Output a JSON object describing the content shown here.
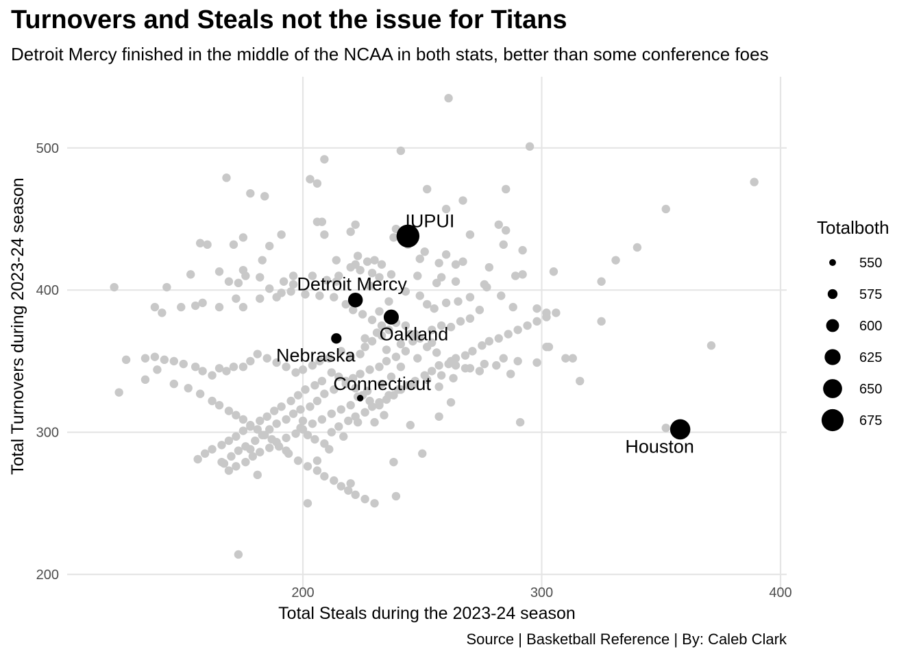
{
  "title": "Turnovers and Steals not the issue for Titans",
  "subtitle": "Detroit Mercy finished in the middle of the NCAA in both stats, better than some conference foes",
  "caption": "Source | Basketball Reference | By: Caleb Clark",
  "chart_data": {
    "type": "scatter",
    "xlabel": "Total Steals during the 2023-24 season",
    "ylabel": "Total Turnovers during 2023-24 season",
    "xlim": [
      100,
      402
    ],
    "ylim": [
      196,
      540
    ],
    "xticks": [
      200,
      300,
      400
    ],
    "yticks": [
      200,
      300,
      400,
      500
    ],
    "grid": true,
    "colors": {
      "background_points": "#c8c8c8",
      "highlight_points": "#000000",
      "grid": "#e5e5e5"
    },
    "legend": {
      "title": "Totalboth",
      "placement": "right",
      "entries": [
        550,
        575,
        600,
        625,
        650,
        675
      ]
    },
    "highlighted": [
      {
        "label": "IUPUI",
        "x": 244,
        "y": 438,
        "total": 682
      },
      {
        "label": "Detroit Mercy",
        "x": 222,
        "y": 393,
        "total": 615
      },
      {
        "label": "Oakland",
        "x": 237,
        "y": 381,
        "total": 618
      },
      {
        "label": "Nebraska",
        "x": 214,
        "y": 366,
        "total": 580
      },
      {
        "label": "Connecticut",
        "x": 224,
        "y": 324,
        "total": 548
      },
      {
        "label": "Houston",
        "x": 358,
        "y": 302,
        "total": 660
      }
    ],
    "points": [
      [
        261,
        535
      ],
      [
        241,
        498
      ],
      [
        295,
        501
      ],
      [
        209,
        492
      ],
      [
        389,
        476
      ],
      [
        168,
        479
      ],
      [
        203,
        478
      ],
      [
        206,
        475
      ],
      [
        184,
        466
      ],
      [
        252,
        471
      ],
      [
        285,
        471
      ],
      [
        178,
        468
      ],
      [
        260,
        457
      ],
      [
        267,
        463
      ],
      [
        352,
        457
      ],
      [
        206,
        448
      ],
      [
        222,
        446
      ],
      [
        282,
        446
      ],
      [
        239,
        443
      ],
      [
        244,
        441
      ],
      [
        270,
        439
      ],
      [
        191,
        439
      ],
      [
        175,
        437
      ],
      [
        285,
        442
      ],
      [
        171,
        432
      ],
      [
        160,
        432
      ],
      [
        208,
        448
      ],
      [
        220,
        441
      ],
      [
        209,
        439
      ],
      [
        238,
        437
      ],
      [
        340,
        430
      ],
      [
        251,
        427
      ],
      [
        249,
        422
      ],
      [
        230,
        421
      ],
      [
        227,
        420
      ],
      [
        214,
        421
      ],
      [
        186,
        431
      ],
      [
        183,
        421
      ],
      [
        175,
        414
      ],
      [
        157,
        433
      ],
      [
        331,
        421
      ],
      [
        325,
        406
      ],
      [
        305,
        413
      ],
      [
        292,
        411
      ],
      [
        289,
        410
      ],
      [
        256,
        405
      ],
      [
        248,
        410
      ],
      [
        237,
        411
      ],
      [
        229,
        412
      ],
      [
        224,
        414
      ],
      [
        220,
        416
      ],
      [
        233,
        418
      ],
      [
        223,
        424
      ],
      [
        278,
        416
      ],
      [
        292,
        428
      ],
      [
        284,
        432
      ],
      [
        267,
        420
      ],
      [
        264,
        418
      ],
      [
        264,
        406
      ],
      [
        258,
        409
      ],
      [
        257,
        419
      ],
      [
        260,
        425
      ],
      [
        244,
        432
      ],
      [
        232,
        409
      ],
      [
        228,
        403
      ],
      [
        222,
        418
      ],
      [
        215,
        410
      ],
      [
        214,
        406
      ],
      [
        210,
        407
      ],
      [
        204,
        410
      ],
      [
        196,
        410
      ],
      [
        192,
        406
      ],
      [
        196,
        404
      ],
      [
        191,
        398
      ],
      [
        186,
        401
      ],
      [
        182,
        409
      ],
      [
        176,
        410
      ],
      [
        173,
        405
      ],
      [
        169,
        406
      ],
      [
        165,
        413
      ],
      [
        153,
        411
      ],
      [
        143,
        402
      ],
      [
        121,
        402
      ],
      [
        138,
        388
      ],
      [
        141,
        384
      ],
      [
        149,
        388
      ],
      [
        155,
        389
      ],
      [
        158,
        391
      ],
      [
        165,
        388
      ],
      [
        172,
        394
      ],
      [
        175,
        388
      ],
      [
        182,
        394
      ],
      [
        189,
        395
      ],
      [
        195,
        399
      ],
      [
        201,
        397
      ],
      [
        207,
        396
      ],
      [
        213,
        395
      ],
      [
        218,
        390
      ],
      [
        221,
        386
      ],
      [
        225,
        383
      ],
      [
        229,
        379
      ],
      [
        233,
        375
      ],
      [
        232,
        385
      ],
      [
        236,
        392
      ],
      [
        243,
        399
      ],
      [
        249,
        396
      ],
      [
        252,
        390
      ],
      [
        255,
        387
      ],
      [
        260,
        391
      ],
      [
        265,
        392
      ],
      [
        270,
        395
      ],
      [
        277,
        402
      ],
      [
        283,
        396
      ],
      [
        288,
        388
      ],
      [
        298,
        387
      ],
      [
        302,
        384
      ],
      [
        276,
        404
      ],
      [
        274,
        386
      ],
      [
        270,
        380
      ],
      [
        266,
        378
      ],
      [
        262,
        374
      ],
      [
        258,
        375
      ],
      [
        254,
        372
      ],
      [
        249,
        366
      ],
      [
        245,
        369
      ],
      [
        243,
        375
      ],
      [
        239,
        377
      ],
      [
        236,
        372
      ],
      [
        233,
        368
      ],
      [
        229,
        364
      ],
      [
        226,
        360
      ],
      [
        224,
        355
      ],
      [
        220,
        353
      ],
      [
        216,
        357
      ],
      [
        211,
        352
      ],
      [
        207,
        350
      ],
      [
        204,
        347
      ],
      [
        200,
        344
      ],
      [
        197,
        342
      ],
      [
        193,
        346
      ],
      [
        189,
        349
      ],
      [
        185,
        352
      ],
      [
        181,
        355
      ],
      [
        178,
        350
      ],
      [
        175,
        346
      ],
      [
        171,
        346
      ],
      [
        168,
        343
      ],
      [
        165,
        345
      ],
      [
        162,
        340
      ],
      [
        158,
        343
      ],
      [
        155,
        346
      ],
      [
        150,
        348
      ],
      [
        146,
        350
      ],
      [
        142,
        351
      ],
      [
        138,
        353
      ],
      [
        134,
        352
      ],
      [
        126,
        351
      ],
      [
        123,
        328
      ],
      [
        134,
        337
      ],
      [
        139,
        344
      ],
      [
        146,
        334
      ],
      [
        152,
        331
      ],
      [
        157,
        327
      ],
      [
        162,
        322
      ],
      [
        165,
        319
      ],
      [
        169,
        315
      ],
      [
        172,
        312
      ],
      [
        175,
        309
      ],
      [
        178,
        305
      ],
      [
        181,
        302
      ],
      [
        184,
        298
      ],
      [
        187,
        295
      ],
      [
        190,
        290
      ],
      [
        194,
        285
      ],
      [
        198,
        280
      ],
      [
        202,
        276
      ],
      [
        206,
        273
      ],
      [
        209,
        269
      ],
      [
        213,
        266
      ],
      [
        216,
        262
      ],
      [
        219,
        259
      ],
      [
        222,
        256
      ],
      [
        226,
        253
      ],
      [
        230,
        250
      ],
      [
        199,
        303
      ],
      [
        202,
        298
      ],
      [
        205,
        295
      ],
      [
        209,
        292
      ],
      [
        212,
        300
      ],
      [
        215,
        304
      ],
      [
        219,
        308
      ],
      [
        222,
        311
      ],
      [
        226,
        314
      ],
      [
        229,
        318
      ],
      [
        232,
        321
      ],
      [
        235,
        323
      ],
      [
        238,
        326
      ],
      [
        241,
        330
      ],
      [
        244,
        333
      ],
      [
        247,
        336
      ],
      [
        251,
        340
      ],
      [
        254,
        343
      ],
      [
        257,
        347
      ],
      [
        261,
        348
      ],
      [
        264,
        352
      ],
      [
        268,
        354
      ],
      [
        271,
        357
      ],
      [
        275,
        361
      ],
      [
        278,
        364
      ],
      [
        282,
        366
      ],
      [
        286,
        369
      ],
      [
        290,
        372
      ],
      [
        294,
        375
      ],
      [
        298,
        378
      ],
      [
        302,
        381
      ],
      [
        306,
        384
      ],
      [
        310,
        352
      ],
      [
        313,
        352
      ],
      [
        316,
        336
      ],
      [
        325,
        378
      ],
      [
        302,
        360
      ],
      [
        290,
        350
      ],
      [
        284,
        352
      ],
      [
        276,
        348
      ],
      [
        270,
        345
      ],
      [
        264,
        347
      ],
      [
        258,
        340
      ],
      [
        252,
        337
      ],
      [
        246,
        333
      ],
      [
        240,
        330
      ],
      [
        236,
        326
      ],
      [
        232,
        319
      ],
      [
        228,
        322
      ],
      [
        225,
        326
      ],
      [
        222,
        331
      ],
      [
        218,
        336
      ],
      [
        215,
        339
      ],
      [
        212,
        342
      ],
      [
        208,
        336
      ],
      [
        205,
        333
      ],
      [
        201,
        330
      ],
      [
        198,
        326
      ],
      [
        195,
        322
      ],
      [
        191,
        318
      ],
      [
        188,
        315
      ],
      [
        185,
        311
      ],
      [
        182,
        308
      ],
      [
        178,
        304
      ],
      [
        175,
        301
      ],
      [
        172,
        297
      ],
      [
        169,
        294
      ],
      [
        166,
        291
      ],
      [
        162,
        288
      ],
      [
        159,
        285
      ],
      [
        156,
        281
      ],
      [
        181,
        270
      ],
      [
        167,
        278
      ],
      [
        173,
        214
      ],
      [
        202,
        250
      ],
      [
        239,
        255
      ],
      [
        238,
        279
      ],
      [
        250,
        285
      ],
      [
        262,
        321
      ],
      [
        257,
        311
      ],
      [
        230,
        307
      ],
      [
        223,
        307
      ],
      [
        220,
        264
      ],
      [
        291,
        307
      ],
      [
        352,
        303
      ],
      [
        371,
        361
      ],
      [
        303,
        360
      ],
      [
        298,
        349
      ],
      [
        287,
        341
      ],
      [
        281,
        347
      ],
      [
        274,
        343
      ],
      [
        268,
        345
      ],
      [
        262,
        350
      ],
      [
        256,
        356
      ],
      [
        252,
        360
      ],
      [
        246,
        364
      ],
      [
        243,
        357
      ],
      [
        239,
        353
      ],
      [
        235,
        350
      ],
      [
        232,
        346
      ],
      [
        228,
        344
      ],
      [
        224,
        341
      ],
      [
        221,
        338
      ],
      [
        218,
        334
      ],
      [
        213,
        330
      ],
      [
        209,
        327
      ],
      [
        206,
        322
      ],
      [
        203,
        318
      ],
      [
        199,
        316
      ],
      [
        196,
        313
      ],
      [
        193,
        309
      ],
      [
        189,
        306
      ],
      [
        186,
        302
      ],
      [
        183,
        298
      ],
      [
        180,
        294
      ],
      [
        176,
        290
      ],
      [
        173,
        287
      ],
      [
        170,
        283
      ],
      [
        166,
        279
      ],
      [
        217,
        297
      ],
      [
        234,
        312
      ],
      [
        245,
        305
      ],
      [
        257,
        332
      ],
      [
        263,
        338
      ],
      [
        254,
        363
      ],
      [
        248,
        352
      ],
      [
        241,
        346
      ],
      [
        237,
        339
      ],
      [
        233,
        334
      ],
      [
        227,
        329
      ],
      [
        223,
        325
      ],
      [
        220,
        319
      ],
      [
        216,
        316
      ],
      [
        212,
        313
      ],
      [
        208,
        309
      ],
      [
        204,
        306
      ],
      [
        200,
        302
      ],
      [
        197,
        299
      ],
      [
        193,
        296
      ],
      [
        189,
        293
      ],
      [
        186,
        289
      ],
      [
        182,
        286
      ],
      [
        179,
        283
      ],
      [
        176,
        279
      ],
      [
        172,
        276
      ],
      [
        169,
        273
      ],
      [
        178,
        288
      ],
      [
        193,
        287
      ],
      [
        200,
        308
      ],
      [
        206,
        280
      ],
      [
        211,
        288
      ],
      [
        226,
        366
      ],
      [
        231,
        370
      ],
      [
        235,
        358
      ],
      [
        241,
        362
      ],
      [
        247,
        369
      ]
    ]
  }
}
